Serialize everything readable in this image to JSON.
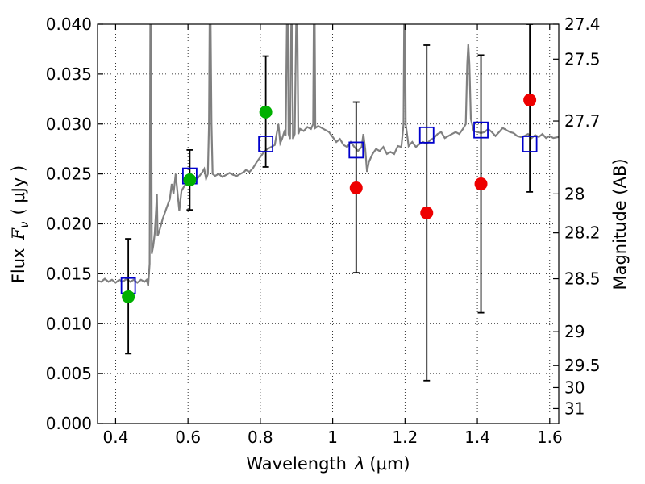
{
  "chart_data": {
    "type": "scatter",
    "xlabel_text": "Wavelength",
    "xlabel_symbol": "λ",
    "xlabel_unit": "(μm)",
    "ylabel_text": "Flux",
    "ylabel_symbol": "F",
    "ylabel_subscript": "ν",
    "ylabel_unit": "( μJy )",
    "y2label": "Magnitude (AB)",
    "xlim": [
      0.35,
      1.625
    ],
    "ylim": [
      0.0,
      0.04
    ],
    "grid": true,
    "x_ticks": [
      0.4,
      0.6,
      0.8,
      1.0,
      1.2,
      1.4,
      1.6
    ],
    "x_tick_labels": [
      "0.4",
      "0.6",
      "0.8",
      "1",
      "1.2",
      "1.4",
      "1.6"
    ],
    "y_ticks": [
      0.0,
      0.005,
      0.01,
      0.015,
      0.02,
      0.025,
      0.03,
      0.035,
      0.04
    ],
    "y_tick_labels": [
      "0.000",
      "0.005",
      "0.010",
      "0.015",
      "0.020",
      "0.025",
      "0.030",
      "0.035",
      "0.040"
    ],
    "y2_ticks": [
      {
        "label": "27.4",
        "flux": 0.04
      },
      {
        "label": "27.5",
        "flux": 0.0365
      },
      {
        "label": "27.7",
        "flux": 0.0303
      },
      {
        "label": "28",
        "flux": 0.023
      },
      {
        "label": "28.2",
        "flux": 0.0191
      },
      {
        "label": "28.5",
        "flux": 0.0145
      },
      {
        "label": "29",
        "flux": 0.0092
      },
      {
        "label": "29.5",
        "flux": 0.0058
      },
      {
        "label": "30",
        "flux": 0.0036
      },
      {
        "label": "31",
        "flux": 0.0015
      }
    ],
    "colors": {
      "model": "#808080",
      "model_flux": "#0000cc",
      "detection": "#00b000",
      "upper_limit": "#ee0000",
      "errorbar": "#000000",
      "grid": "#000000"
    },
    "model_spectrum": [
      [
        0.35,
        0.0143
      ],
      [
        0.36,
        0.0142
      ],
      [
        0.37,
        0.0145
      ],
      [
        0.38,
        0.0142
      ],
      [
        0.39,
        0.0144
      ],
      [
        0.4,
        0.0141
      ],
      [
        0.41,
        0.0144
      ],
      [
        0.42,
        0.0142
      ],
      [
        0.43,
        0.0145
      ],
      [
        0.44,
        0.0142
      ],
      [
        0.45,
        0.0144
      ],
      [
        0.46,
        0.0141
      ],
      [
        0.47,
        0.0144
      ],
      [
        0.48,
        0.0142
      ],
      [
        0.486,
        0.0144
      ],
      [
        0.49,
        0.0138
      ],
      [
        0.494,
        0.016
      ],
      [
        0.496,
        0.042
      ],
      [
        0.498,
        0.042
      ],
      [
        0.5,
        0.017
      ],
      [
        0.504,
        0.0178
      ],
      [
        0.508,
        0.019
      ],
      [
        0.512,
        0.0215
      ],
      [
        0.514,
        0.023
      ],
      [
        0.516,
        0.0188
      ],
      [
        0.52,
        0.0192
      ],
      [
        0.53,
        0.0205
      ],
      [
        0.54,
        0.0215
      ],
      [
        0.55,
        0.0225
      ],
      [
        0.555,
        0.024
      ],
      [
        0.56,
        0.023
      ],
      [
        0.566,
        0.025
      ],
      [
        0.57,
        0.0235
      ],
      [
        0.576,
        0.0213
      ],
      [
        0.582,
        0.0233
      ],
      [
        0.59,
        0.0238
      ],
      [
        0.6,
        0.0242
      ],
      [
        0.605,
        0.0249
      ],
      [
        0.61,
        0.0245
      ],
      [
        0.62,
        0.0243
      ],
      [
        0.63,
        0.0247
      ],
      [
        0.64,
        0.0252
      ],
      [
        0.645,
        0.0255
      ],
      [
        0.65,
        0.0245
      ],
      [
        0.655,
        0.025
      ],
      [
        0.658,
        0.03
      ],
      [
        0.66,
        0.042
      ],
      [
        0.662,
        0.042
      ],
      [
        0.665,
        0.03
      ],
      [
        0.668,
        0.025
      ],
      [
        0.675,
        0.0248
      ],
      [
        0.685,
        0.025
      ],
      [
        0.695,
        0.0247
      ],
      [
        0.705,
        0.0249
      ],
      [
        0.715,
        0.0251
      ],
      [
        0.725,
        0.0249
      ],
      [
        0.735,
        0.0248
      ],
      [
        0.745,
        0.025
      ],
      [
        0.755,
        0.0252
      ],
      [
        0.76,
        0.0254
      ],
      [
        0.77,
        0.0252
      ],
      [
        0.78,
        0.0256
      ],
      [
        0.79,
        0.0262
      ],
      [
        0.8,
        0.0267
      ],
      [
        0.81,
        0.0272
      ],
      [
        0.82,
        0.0275
      ],
      [
        0.83,
        0.0277
      ],
      [
        0.84,
        0.0279
      ],
      [
        0.845,
        0.029
      ],
      [
        0.85,
        0.03
      ],
      [
        0.855,
        0.0281
      ],
      [
        0.86,
        0.0285
      ],
      [
        0.866,
        0.0292
      ],
      [
        0.87,
        0.0288
      ],
      [
        0.874,
        0.042
      ],
      [
        0.876,
        0.042
      ],
      [
        0.878,
        0.029
      ],
      [
        0.882,
        0.0285
      ],
      [
        0.886,
        0.042
      ],
      [
        0.888,
        0.042
      ],
      [
        0.89,
        0.0285
      ],
      [
        0.895,
        0.029
      ],
      [
        0.9,
        0.042
      ],
      [
        0.902,
        0.042
      ],
      [
        0.905,
        0.029
      ],
      [
        0.91,
        0.0295
      ],
      [
        0.92,
        0.0293
      ],
      [
        0.93,
        0.0297
      ],
      [
        0.94,
        0.0295
      ],
      [
        0.946,
        0.03
      ],
      [
        0.948,
        0.042
      ],
      [
        0.95,
        0.042
      ],
      [
        0.952,
        0.0296
      ],
      [
        0.96,
        0.0298
      ],
      [
        0.97,
        0.0296
      ],
      [
        0.98,
        0.0294
      ],
      [
        0.99,
        0.0292
      ],
      [
        1.0,
        0.0287
      ],
      [
        1.01,
        0.0282
      ],
      [
        1.02,
        0.0285
      ],
      [
        1.03,
        0.0279
      ],
      [
        1.04,
        0.0277
      ],
      [
        1.05,
        0.0282
      ],
      [
        1.06,
        0.0277
      ],
      [
        1.07,
        0.0273
      ],
      [
        1.08,
        0.0277
      ],
      [
        1.085,
        0.029
      ],
      [
        1.09,
        0.0275
      ],
      [
        1.095,
        0.0252
      ],
      [
        1.1,
        0.0262
      ],
      [
        1.11,
        0.027
      ],
      [
        1.12,
        0.0275
      ],
      [
        1.13,
        0.0273
      ],
      [
        1.14,
        0.0277
      ],
      [
        1.15,
        0.027
      ],
      [
        1.16,
        0.0272
      ],
      [
        1.17,
        0.027
      ],
      [
        1.18,
        0.0278
      ],
      [
        1.19,
        0.0277
      ],
      [
        1.196,
        0.03
      ],
      [
        1.198,
        0.042
      ],
      [
        1.2,
        0.042
      ],
      [
        1.202,
        0.03
      ],
      [
        1.21,
        0.0278
      ],
      [
        1.22,
        0.0282
      ],
      [
        1.23,
        0.0277
      ],
      [
        1.24,
        0.028
      ],
      [
        1.25,
        0.0282
      ],
      [
        1.26,
        0.028
      ],
      [
        1.27,
        0.0284
      ],
      [
        1.28,
        0.0286
      ],
      [
        1.29,
        0.029
      ],
      [
        1.3,
        0.0292
      ],
      [
        1.31,
        0.0286
      ],
      [
        1.32,
        0.0288
      ],
      [
        1.33,
        0.029
      ],
      [
        1.34,
        0.0292
      ],
      [
        1.35,
        0.029
      ],
      [
        1.36,
        0.0295
      ],
      [
        1.368,
        0.03
      ],
      [
        1.372,
        0.036
      ],
      [
        1.375,
        0.038
      ],
      [
        1.378,
        0.036
      ],
      [
        1.382,
        0.0305
      ],
      [
        1.39,
        0.0293
      ],
      [
        1.4,
        0.0292
      ],
      [
        1.41,
        0.0291
      ],
      [
        1.42,
        0.0292
      ],
      [
        1.43,
        0.0295
      ],
      [
        1.44,
        0.0292
      ],
      [
        1.45,
        0.0288
      ],
      [
        1.46,
        0.0292
      ],
      [
        1.47,
        0.0296
      ],
      [
        1.48,
        0.0294
      ],
      [
        1.49,
        0.0292
      ],
      [
        1.5,
        0.0291
      ],
      [
        1.51,
        0.0288
      ],
      [
        1.52,
        0.0287
      ],
      [
        1.53,
        0.0288
      ],
      [
        1.54,
        0.029
      ],
      [
        1.55,
        0.0286
      ],
      [
        1.56,
        0.0289
      ],
      [
        1.57,
        0.0287
      ],
      [
        1.58,
        0.029
      ],
      [
        1.59,
        0.0286
      ],
      [
        1.6,
        0.0288
      ],
      [
        1.61,
        0.0286
      ],
      [
        1.625,
        0.0287
      ]
    ],
    "model_flux_points": [
      {
        "x": 0.435,
        "y": 0.0138
      },
      {
        "x": 0.605,
        "y": 0.0248
      },
      {
        "x": 0.815,
        "y": 0.028
      },
      {
        "x": 1.065,
        "y": 0.0274
      },
      {
        "x": 1.26,
        "y": 0.0289
      },
      {
        "x": 1.41,
        "y": 0.0294
      },
      {
        "x": 1.545,
        "y": 0.028
      }
    ],
    "detections": [
      {
        "x": 0.435,
        "y": 0.0127,
        "err_low": 0.007,
        "err_high": 0.0185
      },
      {
        "x": 0.605,
        "y": 0.0244,
        "err_low": 0.0214,
        "err_high": 0.0274
      },
      {
        "x": 0.815,
        "y": 0.0312,
        "err_low": 0.0257,
        "err_high": 0.0368
      }
    ],
    "non_detections": [
      {
        "x": 1.065,
        "y": 0.0236,
        "err_low": 0.0151,
        "err_high": 0.0322
      },
      {
        "x": 1.26,
        "y": 0.0211,
        "err_low": 0.0043,
        "err_high": 0.0379
      },
      {
        "x": 1.41,
        "y": 0.024,
        "err_low": 0.0111,
        "err_high": 0.0369
      },
      {
        "x": 1.545,
        "y": 0.0324,
        "err_low": 0.0232,
        "err_high": 0.04
      }
    ]
  }
}
